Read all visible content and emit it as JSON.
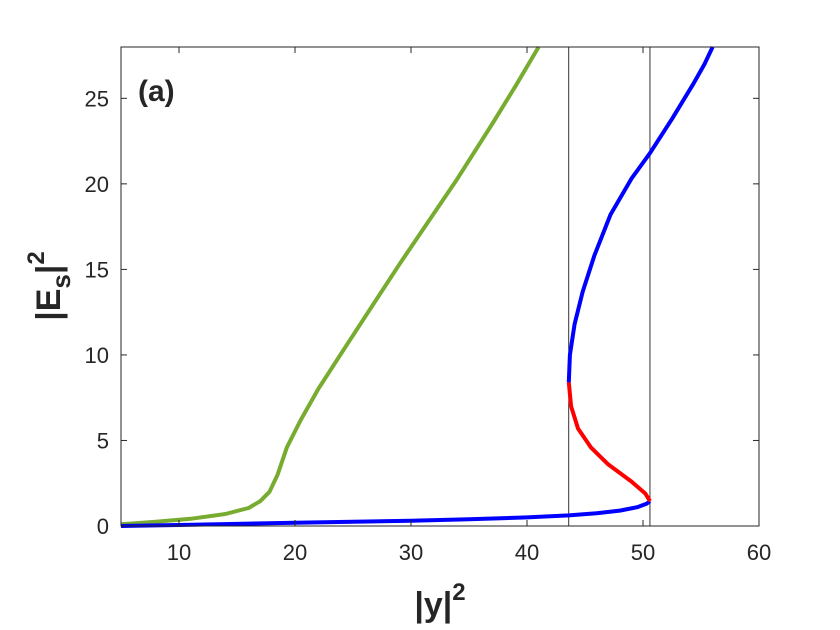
{
  "chart_data": {
    "type": "line",
    "panel_label": "(a)",
    "xlabel": {
      "base": "|y|",
      "sup": "2"
    },
    "ylabel": {
      "base": "|E",
      "sub": "s",
      "tail": "|",
      "sup": "2"
    },
    "xlim": [
      5,
      60
    ],
    "ylim": [
      0,
      28
    ],
    "xticks": [
      10,
      20,
      30,
      40,
      50,
      60
    ],
    "yticks": [
      0,
      5,
      10,
      15,
      20,
      25
    ],
    "grid": false,
    "legend": "none",
    "colors": {
      "green": "#77ac30",
      "blue": "#0000ff",
      "red": "#ff0000",
      "vline": "#000000",
      "axis": "#262626"
    },
    "vlines": [
      43.6,
      50.6
    ],
    "series": [
      {
        "color": "green",
        "points": [
          [
            5,
            0.1
          ],
          [
            8,
            0.25
          ],
          [
            11,
            0.42
          ],
          [
            14,
            0.7
          ],
          [
            16,
            1.05
          ],
          [
            17,
            1.45
          ],
          [
            17.8,
            2.0
          ],
          [
            18.5,
            3.0
          ],
          [
            19.3,
            4.6
          ],
          [
            20.5,
            6.2
          ],
          [
            22,
            8.0
          ],
          [
            24,
            10.1
          ],
          [
            26.5,
            12.7
          ],
          [
            29,
            15.3
          ],
          [
            31.5,
            17.8
          ],
          [
            34,
            20.3
          ],
          [
            37,
            23.5
          ],
          [
            39,
            25.7
          ],
          [
            41,
            28.0
          ]
        ]
      },
      {
        "color": "blue",
        "points": [
          [
            5,
            0.0
          ],
          [
            10,
            0.06
          ],
          [
            15,
            0.12
          ],
          [
            20,
            0.19
          ],
          [
            25,
            0.25
          ],
          [
            30,
            0.31
          ],
          [
            35,
            0.39
          ],
          [
            40,
            0.5
          ],
          [
            43.6,
            0.62
          ],
          [
            46,
            0.75
          ],
          [
            48,
            0.9
          ],
          [
            49.5,
            1.1
          ],
          [
            50.3,
            1.3
          ],
          [
            50.6,
            1.45
          ]
        ]
      },
      {
        "color": "red",
        "points": [
          [
            50.6,
            1.45
          ],
          [
            50.2,
            1.9
          ],
          [
            49,
            2.6
          ],
          [
            47,
            3.6
          ],
          [
            45.5,
            4.6
          ],
          [
            44.4,
            5.7
          ],
          [
            43.8,
            7.0
          ],
          [
            43.6,
            8.4
          ]
        ]
      },
      {
        "color": "blue",
        "points": [
          [
            43.6,
            8.4
          ],
          [
            43.7,
            10.0
          ],
          [
            44.1,
            11.8
          ],
          [
            44.8,
            13.7
          ],
          [
            45.8,
            15.8
          ],
          [
            47.2,
            18.2
          ],
          [
            49,
            20.3
          ],
          [
            50.6,
            21.8
          ],
          [
            52.5,
            23.8
          ],
          [
            54.3,
            25.8
          ],
          [
            55.3,
            27.0
          ],
          [
            56,
            28.0
          ]
        ]
      }
    ]
  }
}
